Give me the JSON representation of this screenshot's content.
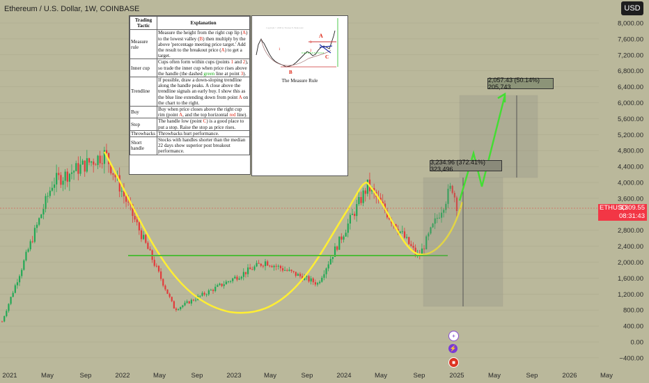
{
  "header": {
    "title": "Ethereum / U.S. Dollar, 1W, COINBASE"
  },
  "currency_button": "USD",
  "price_axis": {
    "labels": [
      "8,000.00",
      "7,600.00",
      "7,200.00",
      "6,800.00",
      "6,400.00",
      "6,000.00",
      "5,600.00",
      "5,200.00",
      "4,800.00",
      "4,400.00",
      "4,000.00",
      "3,600.00",
      "3,200.00",
      "2,800.00",
      "2,400.00",
      "2,000.00",
      "1,600.00",
      "1,200.00",
      "800.00",
      "400.00",
      "0.00",
      "−400.00"
    ]
  },
  "time_axis": {
    "labels": [
      "2021",
      "May",
      "Sep",
      "2022",
      "May",
      "Sep",
      "2023",
      "May",
      "Sep",
      "2024",
      "May",
      "Sep",
      "2025",
      "May",
      "Sep",
      "2026",
      "May"
    ]
  },
  "current_price": {
    "symbol": "ETHUSD",
    "value": "3,309.55",
    "countdown": "08:31:43"
  },
  "measurements": {
    "first": "3,234.96 (372.41%) 323,496",
    "second": "2,057.43 (50.14%) 205,743"
  },
  "tactics_table": {
    "headers": [
      "Trading Tactic",
      "Explanation"
    ],
    "rows": [
      {
        "tactic": "Measure rule",
        "parts": [
          {
            "t": "Measure the height from the right cup lip ("
          },
          {
            "t": "A",
            "c": "red"
          },
          {
            "t": ") to the lowest valley ("
          },
          {
            "t": "B",
            "c": "red"
          },
          {
            "t": ") then multiply by the above 'percentage meeting price target.' Add the result to the breakout price ("
          },
          {
            "t": "A",
            "c": "red"
          },
          {
            "t": ") to get a target."
          }
        ]
      },
      {
        "tactic": "Inner cup",
        "parts": [
          {
            "t": "Cups often form within cups (points "
          },
          {
            "t": "1",
            "c": "red"
          },
          {
            "t": " and "
          },
          {
            "t": "2",
            "c": "red"
          },
          {
            "t": "), so trade the inner cup when price rises above the handle (the dashed "
          },
          {
            "t": "green",
            "c": "green"
          },
          {
            "t": " line at point "
          },
          {
            "t": "3",
            "c": "red"
          },
          {
            "t": ")."
          }
        ]
      },
      {
        "tactic": "Trendline",
        "parts": [
          {
            "t": "If possible, draw a down-sloping trendline along the handle peaks. A close above the trendline signals an early buy. I show this as the blue line extending down from point "
          },
          {
            "t": "A",
            "c": "red"
          },
          {
            "t": " on the chart to the right."
          }
        ]
      },
      {
        "tactic": "Buy",
        "parts": [
          {
            "t": "Buy when price closes above the right cup rim (point "
          },
          {
            "t": "A",
            "c": "red"
          },
          {
            "t": ", and the top horizontal "
          },
          {
            "t": "red",
            "c": "red"
          },
          {
            "t": " line)."
          }
        ]
      },
      {
        "tactic": "Stop",
        "parts": [
          {
            "t": "The handle low (point "
          },
          {
            "t": "C",
            "c": "red"
          },
          {
            "t": ") is a good place to put a stop. Raise the stop as price rises."
          }
        ]
      },
      {
        "tactic": "Throwbacks",
        "parts": [
          {
            "t": "Throwbacks hurt performance."
          }
        ]
      },
      {
        "tactic": "Short handle",
        "parts": [
          {
            "t": "Stocks with handles shorter than the median 22 days show superior post breakout performance."
          }
        ]
      }
    ]
  },
  "measure_rule": {
    "title": "The Measure Rule",
    "copyright": "Copyright © 2008 by Thomas N. Bulkowski",
    "labels": [
      "A",
      "B",
      "C",
      "1",
      "2",
      "3"
    ]
  },
  "colors": {
    "background": "#bab89b",
    "bull": "#22a855",
    "bear": "#e23a3a",
    "cup": "#ffee33",
    "support": "#4fba3a",
    "projection": "#44dd33",
    "price_tag": "#f23645"
  },
  "chart_data": {
    "type": "candlestick",
    "symbol": "ETHUSD",
    "interval": "1W",
    "key_points": [
      {
        "date": "2020-12",
        "price": 600
      },
      {
        "date": "2021-05",
        "price": 4100
      },
      {
        "date": "2021-11",
        "price": 4800
      },
      {
        "date": "2022-06",
        "price": 900
      },
      {
        "date": "2023-04",
        "price": 2100
      },
      {
        "date": "2023-10",
        "price": 1550
      },
      {
        "date": "2024-03",
        "price": 4000
      },
      {
        "date": "2024-08",
        "price": 2200
      },
      {
        "date": "2024-12",
        "price": 4000
      },
      {
        "date": "2025-01",
        "price": 3309.55
      }
    ],
    "support_line": 2150,
    "projection_target": 6200,
    "ylim": [
      -400,
      8000
    ]
  }
}
